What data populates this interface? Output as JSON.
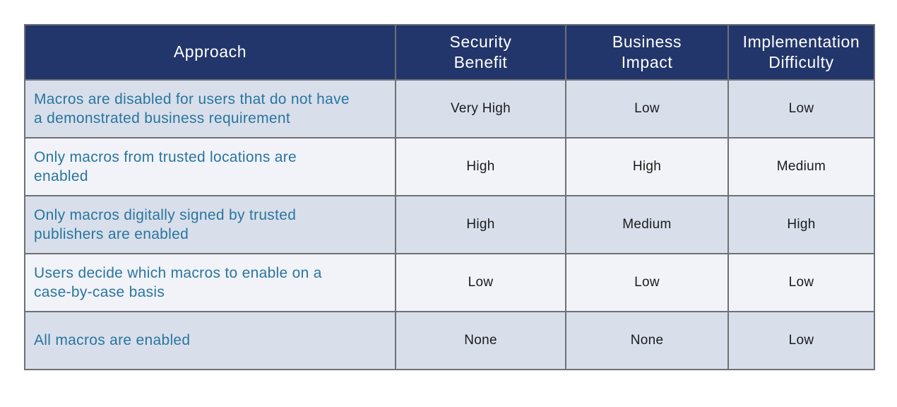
{
  "colors": {
    "header_bg": "#23366B",
    "header_text": "#FFFFFF",
    "row_odd_bg": "#D8DFEB",
    "row_even_bg": "#F1F3F8",
    "border": "#6E7174",
    "approach_text": "#2A759E",
    "value_text": "#1B1B1B",
    "page_bg": "#FFFFFF"
  },
  "table": {
    "headers": [
      "Approach",
      "Security\nBenefit",
      "Business\nImpact",
      "Implementation\nDifficulty"
    ],
    "rows": [
      {
        "approach": "Macros are disabled for users that do not have\na demonstrated business requirement",
        "security_benefit": "Very High",
        "business_impact": "Low",
        "implementation_difficulty": "Low"
      },
      {
        "approach": "Only macros from trusted locations are\nenabled",
        "security_benefit": "High",
        "business_impact": "High",
        "implementation_difficulty": "Medium"
      },
      {
        "approach": "Only macros digitally signed by trusted\npublishers are enabled",
        "security_benefit": "High",
        "business_impact": "Medium",
        "implementation_difficulty": "High"
      },
      {
        "approach": "Users decide which macros to enable on a\ncase-by-case basis",
        "security_benefit": "Low",
        "business_impact": "Low",
        "implementation_difficulty": "Low"
      },
      {
        "approach": "All macros are enabled",
        "security_benefit": "None",
        "business_impact": "None",
        "implementation_difficulty": "Low"
      }
    ]
  },
  "chart_data": {
    "type": "table",
    "title": "",
    "columns": [
      "Approach",
      "Security Benefit",
      "Business Impact",
      "Implementation Difficulty"
    ],
    "rows": [
      [
        "Macros are disabled for users that do not have a demonstrated business requirement",
        "Very High",
        "Low",
        "Low"
      ],
      [
        "Only macros from trusted locations are enabled",
        "High",
        "High",
        "Medium"
      ],
      [
        "Only macros digitally signed by trusted publishers are enabled",
        "High",
        "Medium",
        "High"
      ],
      [
        "Users decide which macros to enable on a case-by-case basis",
        "Low",
        "Low",
        "Low"
      ],
      [
        "All macros are enabled",
        "None",
        "None",
        "Low"
      ]
    ]
  }
}
